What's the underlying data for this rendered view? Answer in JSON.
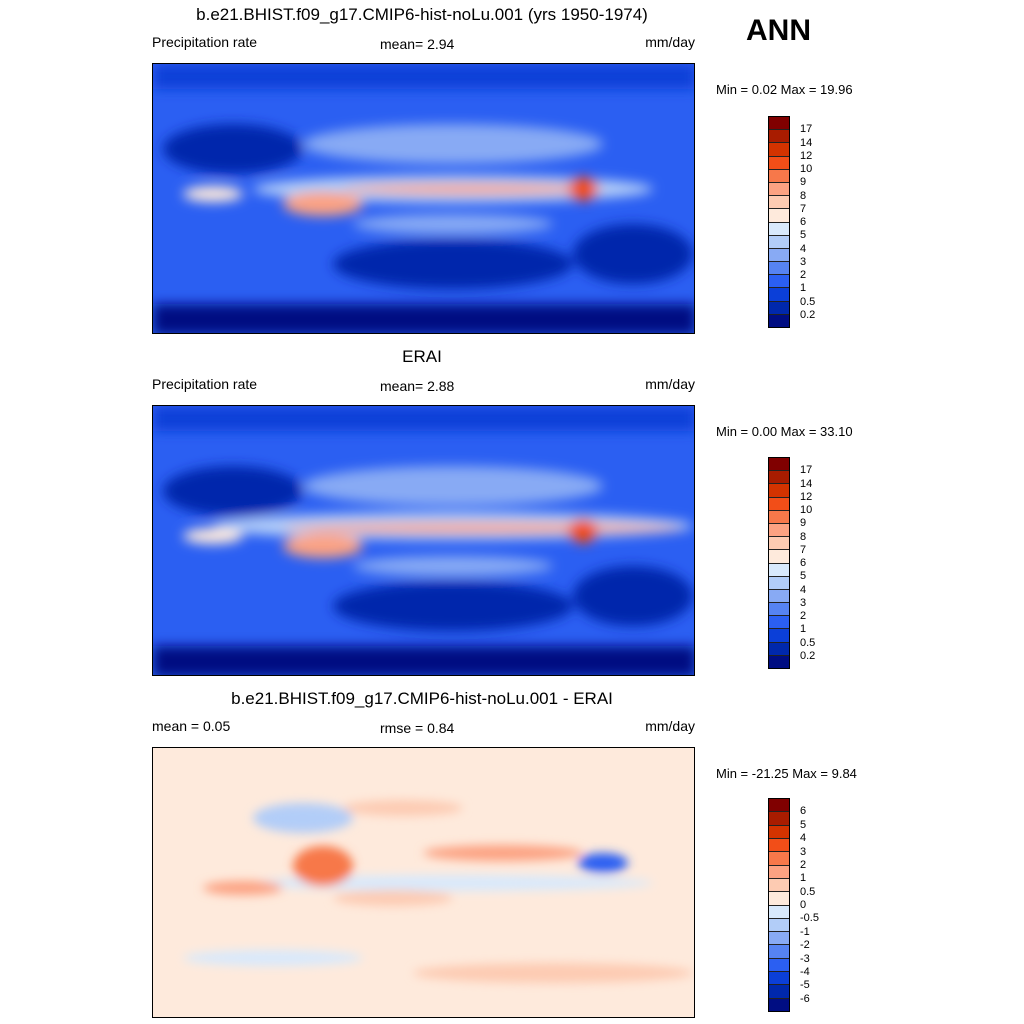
{
  "season": "ANN",
  "panels": [
    {
      "title": "b.e21.BHIST.f09_g17.CMIP6-hist-noLu.001 (yrs 1950-1974)",
      "left": "Precipitation rate",
      "center": "mean=   2.94",
      "units": "mm/day",
      "minmax": "Min =   0.02 Max =  19.96",
      "kind": "model"
    },
    {
      "title": "ERAI",
      "left": "Precipitation rate",
      "center": "mean=   2.88",
      "units": "mm/day",
      "minmax": "Min =   0.00 Max =  33.10",
      "kind": "obs"
    },
    {
      "title": "b.e21.BHIST.f09_g17.CMIP6-hist-noLu.001 - ERAI",
      "left": "mean =   0.05",
      "center": "rmse =   0.84",
      "units": "mm/day",
      "minmax": "Min = -21.25 Max =   9.84",
      "kind": "diff"
    }
  ],
  "colorbars": {
    "precip": {
      "labels": [
        "17",
        "14",
        "12",
        "10",
        "9",
        "8",
        "7",
        "6",
        "5",
        "4",
        "3",
        "2",
        "1",
        "0.5",
        "0.2"
      ],
      "colors": [
        "#800000",
        "#a81c00",
        "#d33300",
        "#f24e18",
        "#f7784a",
        "#fca282",
        "#fdcbb2",
        "#feeadc",
        "#d8e9fc",
        "#b2cdf8",
        "#88aaf4",
        "#5683f2",
        "#2b5ff2",
        "#0b3fd8",
        "#0028ac",
        "#000d82"
      ]
    },
    "diff": {
      "labels": [
        "6",
        "5",
        "4",
        "3",
        "2",
        "1",
        "0.5",
        "0",
        "-0.5",
        "-1",
        "-2",
        "-3",
        "-4",
        "-5",
        "-6"
      ],
      "colors": [
        "#800000",
        "#a81c00",
        "#d33300",
        "#f24e18",
        "#f7784a",
        "#fca282",
        "#fdcbb2",
        "#feeadc",
        "#d8e9fc",
        "#b2cdf8",
        "#88aaf4",
        "#5683f2",
        "#2b5ff2",
        "#0b3fd8",
        "#0028ac",
        "#000d82"
      ]
    }
  }
}
